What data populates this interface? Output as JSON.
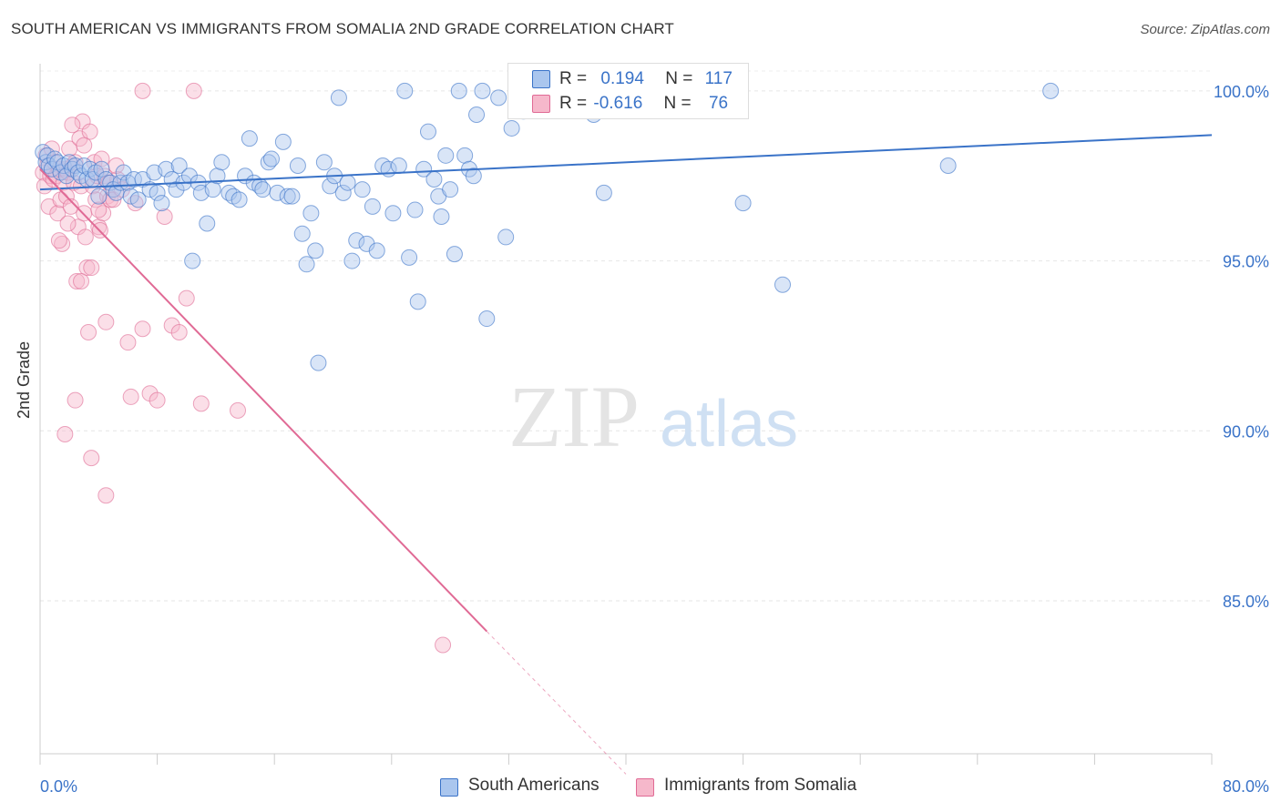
{
  "title": "SOUTH AMERICAN VS IMMIGRANTS FROM SOMALIA 2ND GRADE CORRELATION CHART",
  "source": "Source: ZipAtlas.com",
  "watermark": {
    "zip": "ZIP",
    "atlas": "atlas"
  },
  "legend": {
    "r_label": "R =",
    "n_label": "N =",
    "rows": [
      {
        "r": "0.194",
        "n": "117"
      },
      {
        "r": "-0.616",
        "n": "76"
      }
    ]
  },
  "chart_data": {
    "type": "scatter",
    "title": "SOUTH AMERICAN VS IMMIGRANTS FROM SOMALIA 2ND GRADE CORRELATION CHART",
    "xlabel": "",
    "ylabel": "2nd Grade",
    "xlim": [
      0,
      80
    ],
    "ylim": [
      80.5,
      100.8
    ],
    "x_tick_labels": [
      "0.0%",
      "80.0%"
    ],
    "y_tick_labels": [
      "100.0%",
      "95.0%",
      "90.0%",
      "85.0%"
    ],
    "y_ticks": [
      100,
      95,
      90,
      85
    ],
    "grid": true,
    "legend_position": "top-center",
    "colors": {
      "blue": "#3a73c8",
      "blue_fill": "#aac6ee",
      "pink": "#e06a95",
      "pink_fill": "#f6b8cb"
    },
    "series": [
      {
        "name": "South Americans",
        "color": "#3a73c8",
        "trend": {
          "x": [
            0,
            80
          ],
          "y": [
            97.1,
            98.7
          ]
        },
        "points": [
          [
            0.2,
            98.2
          ],
          [
            0.4,
            97.9
          ],
          [
            0.5,
            98.1
          ],
          [
            0.6,
            97.8
          ],
          [
            0.8,
            97.7
          ],
          [
            1.0,
            98.0
          ],
          [
            1.2,
            97.9
          ],
          [
            1.4,
            97.6
          ],
          [
            1.6,
            97.8
          ],
          [
            1.8,
            97.5
          ],
          [
            2.0,
            97.9
          ],
          [
            2.2,
            97.7
          ],
          [
            2.4,
            97.8
          ],
          [
            2.6,
            97.6
          ],
          [
            2.8,
            97.5
          ],
          [
            3.0,
            97.8
          ],
          [
            3.2,
            97.4
          ],
          [
            3.4,
            97.7
          ],
          [
            3.6,
            97.4
          ],
          [
            3.8,
            97.6
          ],
          [
            4.0,
            96.9
          ],
          [
            4.2,
            97.7
          ],
          [
            4.5,
            97.4
          ],
          [
            4.8,
            97.3
          ],
          [
            5.0,
            97.1
          ],
          [
            5.2,
            97.0
          ],
          [
            5.5,
            97.3
          ],
          [
            5.7,
            97.6
          ],
          [
            6.0,
            97.3
          ],
          [
            6.2,
            96.9
          ],
          [
            6.4,
            97.4
          ],
          [
            6.7,
            96.8
          ],
          [
            7.0,
            97.4
          ],
          [
            7.5,
            97.1
          ],
          [
            7.8,
            97.6
          ],
          [
            8.0,
            97.0
          ],
          [
            8.3,
            96.7
          ],
          [
            8.6,
            97.7
          ],
          [
            9.0,
            97.4
          ],
          [
            9.3,
            97.1
          ],
          [
            9.5,
            97.8
          ],
          [
            9.8,
            97.3
          ],
          [
            10.2,
            97.5
          ],
          [
            10.4,
            95.0
          ],
          [
            10.8,
            97.3
          ],
          [
            11.0,
            97.0
          ],
          [
            11.4,
            96.1
          ],
          [
            11.8,
            97.1
          ],
          [
            12.1,
            97.5
          ],
          [
            12.4,
            97.9
          ],
          [
            12.9,
            97.0
          ],
          [
            13.2,
            96.9
          ],
          [
            13.6,
            96.8
          ],
          [
            14.0,
            97.5
          ],
          [
            14.3,
            98.6
          ],
          [
            14.6,
            97.3
          ],
          [
            15.0,
            97.2
          ],
          [
            15.2,
            97.1
          ],
          [
            15.6,
            97.9
          ],
          [
            15.8,
            98.0
          ],
          [
            16.2,
            97.0
          ],
          [
            16.6,
            98.5
          ],
          [
            16.9,
            96.9
          ],
          [
            17.2,
            96.9
          ],
          [
            17.6,
            97.8
          ],
          [
            17.9,
            95.8
          ],
          [
            18.2,
            94.9
          ],
          [
            18.5,
            96.4
          ],
          [
            18.8,
            95.3
          ],
          [
            19.0,
            92.0
          ],
          [
            19.4,
            97.9
          ],
          [
            19.8,
            97.2
          ],
          [
            20.1,
            97.5
          ],
          [
            20.4,
            99.8
          ],
          [
            20.7,
            97.0
          ],
          [
            21.0,
            97.3
          ],
          [
            21.3,
            95.0
          ],
          [
            21.6,
            95.6
          ],
          [
            22.0,
            97.1
          ],
          [
            22.3,
            95.5
          ],
          [
            22.7,
            96.6
          ],
          [
            23.0,
            95.3
          ],
          [
            23.4,
            97.8
          ],
          [
            23.8,
            97.7
          ],
          [
            24.1,
            96.4
          ],
          [
            24.5,
            97.8
          ],
          [
            24.9,
            100.0
          ],
          [
            25.2,
            95.1
          ],
          [
            25.6,
            96.5
          ],
          [
            25.8,
            93.8
          ],
          [
            26.2,
            97.7
          ],
          [
            26.5,
            98.8
          ],
          [
            26.9,
            97.4
          ],
          [
            27.2,
            96.9
          ],
          [
            27.4,
            96.3
          ],
          [
            27.7,
            98.1
          ],
          [
            28.0,
            97.1
          ],
          [
            28.3,
            95.2
          ],
          [
            28.6,
            100.0
          ],
          [
            29.0,
            98.1
          ],
          [
            29.3,
            97.7
          ],
          [
            29.6,
            97.5
          ],
          [
            29.8,
            99.3
          ],
          [
            30.2,
            100.0
          ],
          [
            30.5,
            93.3
          ],
          [
            31.3,
            99.8
          ],
          [
            31.8,
            95.7
          ],
          [
            32.2,
            98.9
          ],
          [
            33.0,
            99.4
          ],
          [
            35.5,
            99.8
          ],
          [
            37.8,
            99.3
          ],
          [
            39.0,
            99.7
          ],
          [
            38.5,
            97.0
          ],
          [
            48.0,
            96.7
          ],
          [
            50.7,
            94.3
          ],
          [
            62.0,
            97.8
          ],
          [
            69.0,
            100.0
          ]
        ]
      },
      {
        "name": "Immigrants from Somalia",
        "color": "#e06a95",
        "trend": {
          "x": [
            0,
            30.5
          ],
          "y": [
            97.7,
            84.1
          ]
        },
        "trend_dashed": {
          "x": [
            30.5,
            40
          ],
          "y": [
            84.1,
            79.9
          ]
        },
        "points": [
          [
            0.2,
            97.6
          ],
          [
            0.3,
            97.2
          ],
          [
            0.4,
            98.1
          ],
          [
            0.5,
            97.8
          ],
          [
            0.6,
            96.6
          ],
          [
            0.7,
            97.5
          ],
          [
            0.8,
            98.3
          ],
          [
            0.9,
            97.4
          ],
          [
            1.0,
            97.9
          ],
          [
            1.1,
            97.5
          ],
          [
            1.2,
            96.4
          ],
          [
            1.3,
            97.7
          ],
          [
            1.4,
            96.8
          ],
          [
            1.5,
            95.5
          ],
          [
            1.6,
            97.3
          ],
          [
            1.7,
            97.7
          ],
          [
            1.8,
            96.9
          ],
          [
            1.9,
            97.6
          ],
          [
            2.0,
            98.3
          ],
          [
            2.1,
            96.6
          ],
          [
            2.2,
            97.8
          ],
          [
            2.3,
            97.3
          ],
          [
            2.4,
            97.9
          ],
          [
            2.5,
            94.4
          ],
          [
            2.6,
            96.0
          ],
          [
            2.7,
            98.6
          ],
          [
            2.8,
            97.2
          ],
          [
            2.9,
            99.1
          ],
          [
            3.0,
            96.4
          ],
          [
            3.1,
            95.7
          ],
          [
            3.2,
            94.8
          ],
          [
            3.3,
            92.9
          ],
          [
            3.4,
            98.8
          ],
          [
            3.5,
            94.8
          ],
          [
            3.6,
            97.2
          ],
          [
            3.7,
            97.9
          ],
          [
            3.8,
            96.8
          ],
          [
            3.9,
            97.5
          ],
          [
            4.0,
            96.0
          ],
          [
            4.1,
            95.9
          ],
          [
            4.2,
            98.0
          ],
          [
            4.3,
            96.4
          ],
          [
            4.4,
            97.5
          ],
          [
            4.5,
            93.2
          ],
          [
            4.6,
            96.9
          ],
          [
            4.7,
            97.3
          ],
          [
            4.8,
            96.8
          ],
          [
            5.0,
            96.8
          ],
          [
            5.3,
            97.4
          ],
          [
            5.6,
            97.1
          ],
          [
            6.0,
            92.6
          ],
          [
            6.5,
            96.7
          ],
          [
            7.0,
            93.0
          ],
          [
            7.5,
            91.1
          ],
          [
            8.0,
            90.9
          ],
          [
            8.5,
            96.3
          ],
          [
            9.0,
            93.1
          ],
          [
            9.5,
            92.9
          ],
          [
            10.0,
            93.9
          ],
          [
            11.0,
            90.8
          ],
          [
            13.5,
            90.6
          ],
          [
            2.4,
            90.9
          ],
          [
            1.7,
            89.9
          ],
          [
            3.5,
            89.2
          ],
          [
            4.5,
            88.1
          ],
          [
            6.2,
            91.0
          ],
          [
            10.5,
            100.0
          ],
          [
            7.0,
            100.0
          ],
          [
            3.0,
            98.4
          ],
          [
            2.2,
            99.0
          ],
          [
            1.3,
            95.6
          ],
          [
            2.8,
            94.4
          ],
          [
            1.9,
            96.1
          ],
          [
            5.2,
            97.8
          ],
          [
            4.0,
            96.5
          ],
          [
            27.5,
            83.7
          ]
        ]
      }
    ]
  },
  "bottom_legend": [
    "South Americans",
    "Immigrants from Somalia"
  ]
}
